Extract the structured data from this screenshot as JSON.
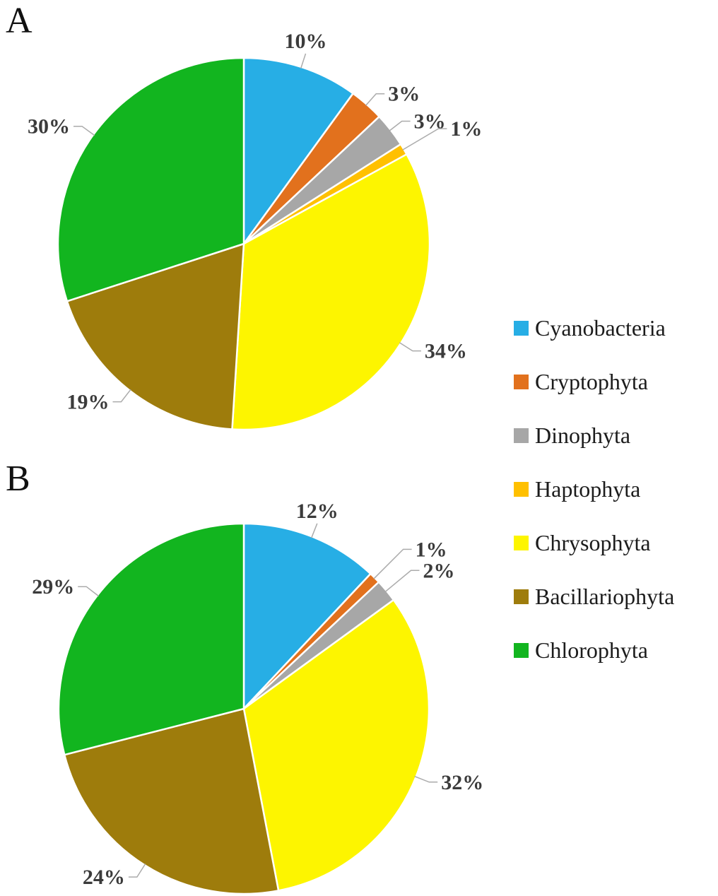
{
  "figure": {
    "panels": [
      {
        "label": "A"
      },
      {
        "label": "B"
      }
    ],
    "legend": {
      "position": "right",
      "items": [
        {
          "label": "Cyanobacteria",
          "color": "#27aee5"
        },
        {
          "label": "Cryptophyta",
          "color": "#e2711d"
        },
        {
          "label": "Dinophyta",
          "color": "#a7a7a7"
        },
        {
          "label": "Haptophyta",
          "color": "#ffc000"
        },
        {
          "label": "Chrysophyta",
          "color": "#fdf500"
        },
        {
          "label": "Bacillariophyta",
          "color": "#9e7c0c"
        },
        {
          "label": "Chlorophyta",
          "color": "#12b51f"
        }
      ]
    }
  },
  "chart_data": [
    {
      "type": "pie",
      "panel": "A",
      "title": "",
      "categories": [
        "Cyanobacteria",
        "Cryptophyta",
        "Dinophyta",
        "Haptophyta",
        "Chrysophyta",
        "Bacillariophyta",
        "Chlorophyta"
      ],
      "values": [
        10,
        3,
        3,
        1,
        34,
        19,
        30
      ],
      "labels": [
        "10%",
        "3%",
        "3%",
        "1%",
        "34%",
        "19%",
        "30%"
      ],
      "colors": [
        "#27aee5",
        "#e2711d",
        "#a7a7a7",
        "#ffc000",
        "#fdf500",
        "#9e7c0c",
        "#12b51f"
      ],
      "start_angle_deg": 0,
      "direction": "clockwise",
      "legend_position": "right"
    },
    {
      "type": "pie",
      "panel": "B",
      "title": "",
      "categories": [
        "Cyanobacteria",
        "Cryptophyta",
        "Dinophyta",
        "Haptophyta",
        "Chrysophyta",
        "Bacillariophyta",
        "Chlorophyta"
      ],
      "values": [
        12,
        1,
        2,
        0,
        32,
        24,
        29
      ],
      "labels": [
        "12%",
        "1%",
        "2%",
        "",
        "32%",
        "24%",
        "29%"
      ],
      "colors": [
        "#27aee5",
        "#e2711d",
        "#a7a7a7",
        "#ffc000",
        "#fdf500",
        "#9e7c0c",
        "#12b51f"
      ],
      "start_angle_deg": 0,
      "direction": "clockwise",
      "legend_position": "right"
    }
  ]
}
